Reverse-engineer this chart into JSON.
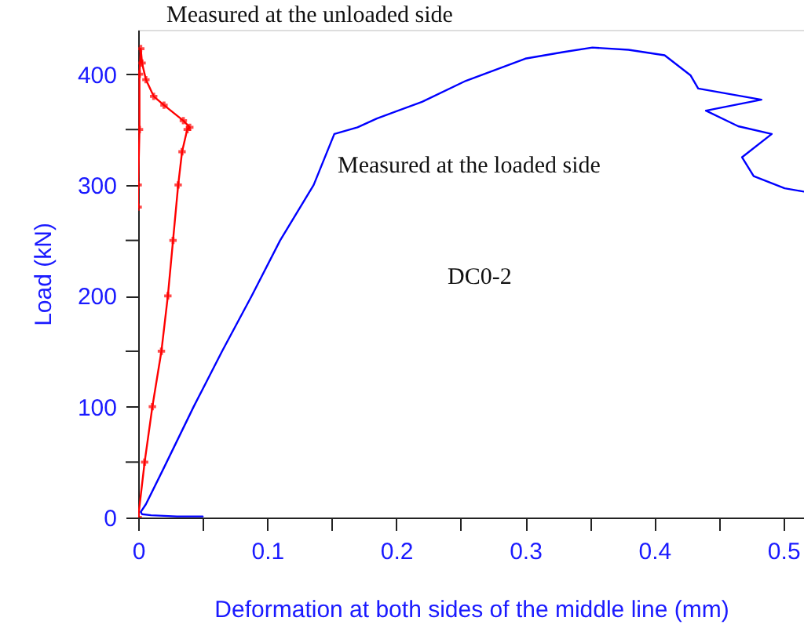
{
  "chart_data": {
    "type": "line",
    "xlabel": "Deformation at both sides of the middle line (mm)",
    "ylabel": "Load (kN)",
    "xlim": [
      0,
      0.516
    ],
    "ylim": [
      0,
      440
    ],
    "xticks": [
      0,
      {
        "value": 0.05,
        "label": null
      },
      0.1,
      {
        "value": 0.15,
        "label": null
      },
      0.2,
      {
        "value": 0.25,
        "label": null
      },
      0.3,
      {
        "value": 0.35,
        "label": null
      },
      0.4,
      {
        "value": 0.45,
        "label": null
      },
      0.5
    ],
    "yticks": [
      0,
      {
        "value": 50,
        "label": null
      },
      100,
      {
        "value": 150,
        "label": null
      },
      200,
      {
        "value": 250,
        "label": null
      },
      300,
      {
        "value": 350,
        "label": null
      },
      400
    ],
    "grid": false,
    "line_style": "solid",
    "annotations": [
      "Measured at the unloaded side",
      "Measured at the loaded side",
      "DC0-2"
    ],
    "series": [
      {
        "color": "#0000ff",
        "marker": "none",
        "x": [
          0.05,
          0.03,
          0.01,
          0.003,
          0.002,
          0.006,
          0.02,
          0.043,
          0.065,
          0.088,
          0.11,
          0.136,
          0.152,
          0.17,
          0.185,
          0.22,
          0.254,
          0.3,
          0.33,
          0.352,
          0.38,
          0.408,
          0.428,
          0.434,
          0.483,
          0.44,
          0.465,
          0.491,
          0.468,
          0.477,
          0.501,
          0.516
        ],
        "values": [
          1,
          1,
          2,
          3,
          5,
          12,
          45,
          100,
          150,
          200,
          250,
          300,
          346,
          352,
          360,
          375,
          394,
          414,
          420,
          424,
          422,
          417,
          399,
          387,
          377,
          367,
          353,
          346,
          325,
          308,
          297,
          294
        ]
      },
      {
        "color": "#ff0000",
        "marker": "cross",
        "x": [
          0,
          0.005,
          0.011,
          0.018,
          0.023,
          0.027,
          0.031,
          0.034,
          0.038,
          0.04,
          0.035,
          0.02,
          0.012,
          0.006,
          0.003,
          0.002,
          0.001,
          0.001,
          0,
          0
        ],
        "values": [
          0,
          50,
          100,
          150,
          200,
          250,
          300,
          330,
          350,
          352,
          358,
          372,
          380,
          395,
          410,
          423,
          400,
          350,
          300,
          280
        ]
      }
    ]
  }
}
